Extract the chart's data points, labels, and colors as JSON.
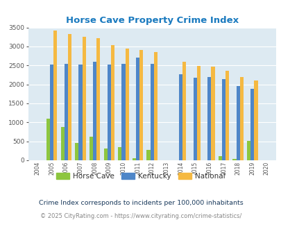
{
  "title": "Horse Cave Property Crime Index",
  "years": [
    2004,
    2005,
    2006,
    2007,
    2008,
    2009,
    2010,
    2011,
    2012,
    2013,
    2014,
    2015,
    2016,
    2017,
    2018,
    2019,
    2020
  ],
  "horse_cave": [
    0,
    1090,
    870,
    460,
    620,
    305,
    340,
    55,
    270,
    0,
    0,
    0,
    0,
    105,
    45,
    515,
    0
  ],
  "kentucky": [
    0,
    2530,
    2550,
    2530,
    2600,
    2530,
    2550,
    2700,
    2550,
    0,
    2260,
    2185,
    2190,
    2135,
    1960,
    1890,
    0
  ],
  "national": [
    0,
    3420,
    3330,
    3260,
    3210,
    3040,
    2950,
    2900,
    2850,
    0,
    2590,
    2490,
    2460,
    2360,
    2200,
    2100,
    0
  ],
  "horse_cave_color": "#8dc63f",
  "kentucky_color": "#4e86c8",
  "national_color": "#f5b942",
  "bg_color": "#ddeaf2",
  "title_color": "#1a7abf",
  "footer_note": "Crime Index corresponds to incidents per 100,000 inhabitants",
  "copyright": "© 2025 CityRating.com - https://www.cityrating.com/crime-statistics/",
  "ylim": [
    0,
    3500
  ],
  "yticks": [
    0,
    500,
    1000,
    1500,
    2000,
    2500,
    3000,
    3500
  ]
}
